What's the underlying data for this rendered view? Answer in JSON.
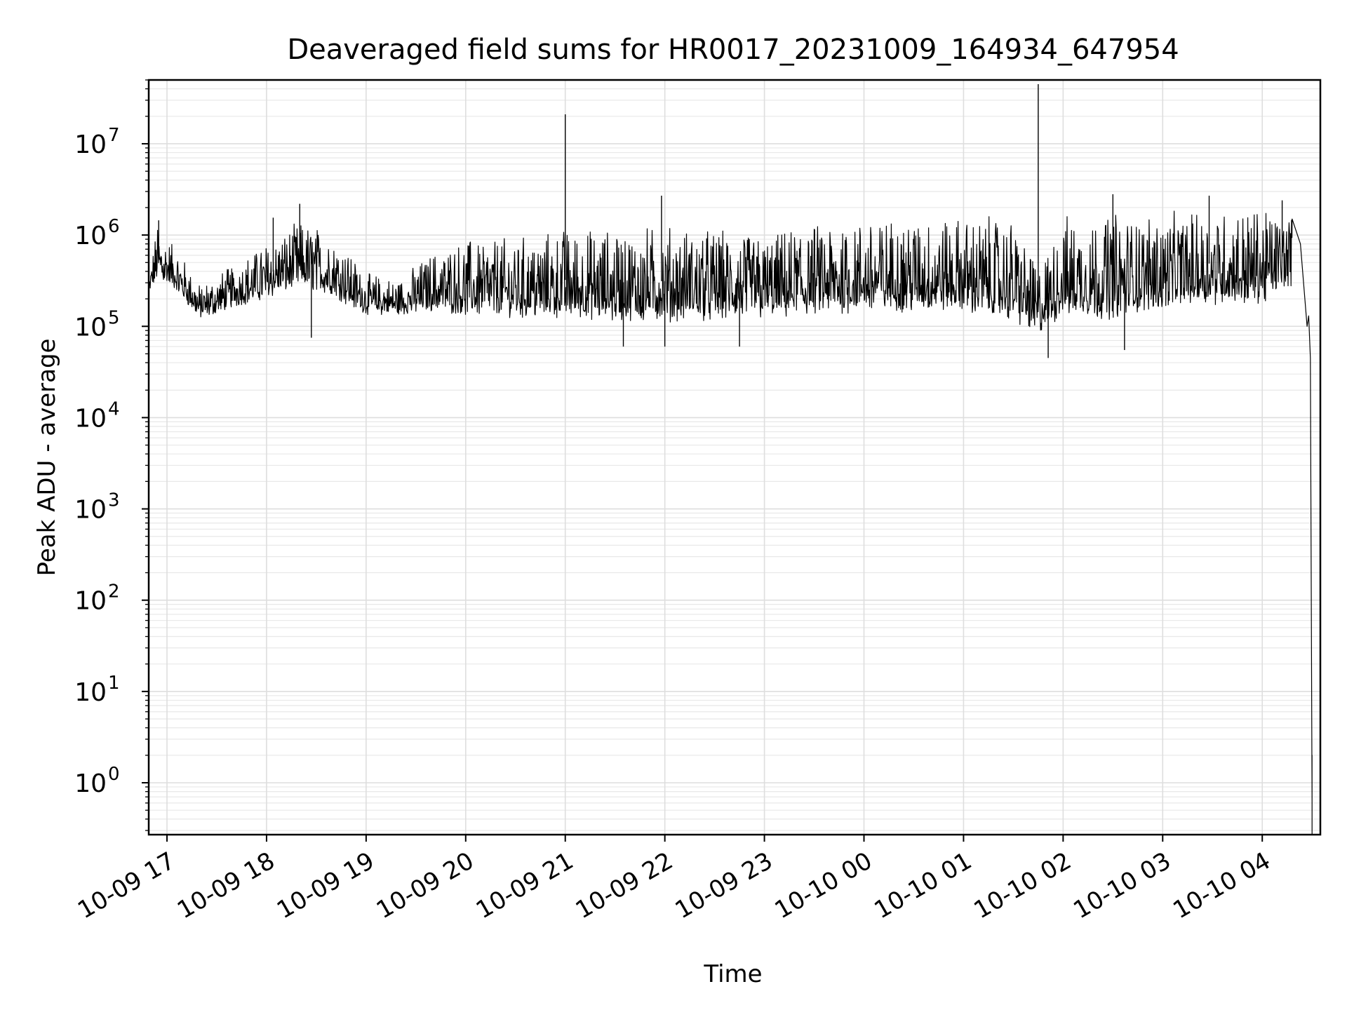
{
  "chart_data": {
    "type": "line",
    "title": "Deaveraged field sums for HR0017_20231009_164934_647954",
    "xlabel": "Time",
    "ylabel": "Peak ADU - average",
    "yscale": "log",
    "ylim": [
      0.27,
      50000000
    ],
    "xlim": [
      "2023-10-09 16:49",
      "2023-10-10 04:35"
    ],
    "grid": true,
    "x_ticks": [
      {
        "t": "2023-10-09 17:00",
        "label": "10-09 17"
      },
      {
        "t": "2023-10-09 18:00",
        "label": "10-09 18"
      },
      {
        "t": "2023-10-09 19:00",
        "label": "10-09 19"
      },
      {
        "t": "2023-10-09 20:00",
        "label": "10-09 20"
      },
      {
        "t": "2023-10-09 21:00",
        "label": "10-09 21"
      },
      {
        "t": "2023-10-09 22:00",
        "label": "10-09 22"
      },
      {
        "t": "2023-10-09 23:00",
        "label": "10-09 23"
      },
      {
        "t": "2023-10-10 00:00",
        "label": "10-10 00"
      },
      {
        "t": "2023-10-10 01:00",
        "label": "10-10 01"
      },
      {
        "t": "2023-10-10 02:00",
        "label": "10-10 02"
      },
      {
        "t": "2023-10-10 03:00",
        "label": "10-10 03"
      },
      {
        "t": "2023-10-10 04:00",
        "label": "10-10 04"
      }
    ],
    "y_ticks": [
      {
        "value": 1,
        "base": "10",
        "exp": "0"
      },
      {
        "value": 10,
        "base": "10",
        "exp": "1"
      },
      {
        "value": 100,
        "base": "10",
        "exp": "2"
      },
      {
        "value": 1000,
        "base": "10",
        "exp": "3"
      },
      {
        "value": 10000,
        "base": "10",
        "exp": "4"
      },
      {
        "value": 100000,
        "base": "10",
        "exp": "5"
      },
      {
        "value": 1000000,
        "base": "10",
        "exp": "6"
      },
      {
        "value": 10000000,
        "base": "10",
        "exp": "7"
      }
    ],
    "series": [
      {
        "color": "#000000",
        "envelope": [
          {
            "t": "2023-10-09 16:49",
            "low": 200000,
            "high": 350000
          },
          {
            "t": "2023-10-09 16:54",
            "low": 250000,
            "high": 1400000
          },
          {
            "t": "2023-10-09 17:05",
            "low": 200000,
            "high": 800000
          },
          {
            "t": "2023-10-09 17:20",
            "low": 100000,
            "high": 300000
          },
          {
            "t": "2023-10-09 17:40",
            "low": 130000,
            "high": 500000
          },
          {
            "t": "2023-10-09 18:00",
            "low": 150000,
            "high": 900000
          },
          {
            "t": "2023-10-09 18:20",
            "low": 200000,
            "high": 1500000
          },
          {
            "t": "2023-10-09 18:40",
            "low": 150000,
            "high": 1200000
          },
          {
            "t": "2023-10-09 19:00",
            "low": 110000,
            "high": 400000
          },
          {
            "t": "2023-10-09 19:20",
            "low": 110000,
            "high": 350000
          },
          {
            "t": "2023-10-09 19:40",
            "low": 110000,
            "high": 700000
          },
          {
            "t": "2023-10-09 20:00",
            "low": 90000,
            "high": 1000000
          },
          {
            "t": "2023-10-09 20:30",
            "low": 85000,
            "high": 1000000
          },
          {
            "t": "2023-10-09 21:00",
            "low": 80000,
            "high": 1300000
          },
          {
            "t": "2023-10-09 21:30",
            "low": 70000,
            "high": 1300000
          },
          {
            "t": "2023-10-09 22:00",
            "low": 70000,
            "high": 1400000
          },
          {
            "t": "2023-10-09 22:30",
            "low": 75000,
            "high": 1300000
          },
          {
            "t": "2023-10-09 23:00",
            "low": 80000,
            "high": 1100000
          },
          {
            "t": "2023-10-09 23:30",
            "low": 80000,
            "high": 1500000
          },
          {
            "t": "2023-10-10 00:00",
            "low": 90000,
            "high": 1700000
          },
          {
            "t": "2023-10-10 00:30",
            "low": 90000,
            "high": 1800000
          },
          {
            "t": "2023-10-10 01:00",
            "low": 90000,
            "high": 1800000
          },
          {
            "t": "2023-10-10 01:30",
            "low": 70000,
            "high": 1700000
          },
          {
            "t": "2023-10-10 01:45",
            "low": 55000,
            "high": 500000
          },
          {
            "t": "2023-10-10 02:00",
            "low": 80000,
            "high": 1800000
          },
          {
            "t": "2023-10-10 02:30",
            "low": 70000,
            "high": 2000000
          },
          {
            "t": "2023-10-10 03:00",
            "low": 100000,
            "high": 1800000
          },
          {
            "t": "2023-10-10 03:30",
            "low": 110000,
            "high": 2200000
          },
          {
            "t": "2023-10-10 04:00",
            "low": 110000,
            "high": 2200000
          },
          {
            "t": "2023-10-10 04:18",
            "low": 200000,
            "high": 2000000
          }
        ],
        "spikes": [
          {
            "t": "2023-10-09 16:55",
            "value": 1450000
          },
          {
            "t": "2023-10-09 18:04",
            "value": 1550000
          },
          {
            "t": "2023-10-09 18:20",
            "value": 2200000
          },
          {
            "t": "2023-10-09 21:00",
            "value": 21000000
          },
          {
            "t": "2023-10-09 21:58",
            "value": 2700000
          },
          {
            "t": "2023-10-10 01:45",
            "value": 45000000
          },
          {
            "t": "2023-10-10 02:30",
            "value": 2800000
          },
          {
            "t": "2023-10-10 03:28",
            "value": 2700000
          },
          {
            "t": "2023-10-10 04:12",
            "value": 2400000
          }
        ],
        "dips": [
          {
            "t": "2023-10-09 18:27",
            "value": 75000
          },
          {
            "t": "2023-10-09 21:35",
            "value": 60000
          },
          {
            "t": "2023-10-09 22:00",
            "value": 60000
          },
          {
            "t": "2023-10-09 22:45",
            "value": 60000
          },
          {
            "t": "2023-10-10 01:51",
            "value": 45000
          },
          {
            "t": "2023-10-10 02:37",
            "value": 55000
          }
        ],
        "tail": [
          {
            "t": "2023-10-10 04:18",
            "value": 1500000
          },
          {
            "t": "2023-10-10 04:23",
            "value": 800000
          },
          {
            "t": "2023-10-10 04:27",
            "value": 100000
          },
          {
            "t": "2023-10-10 04:28",
            "value": 130000
          },
          {
            "t": "2023-10-10 04:29",
            "value": 45000
          },
          {
            "t": "2023-10-10 04:30",
            "value": 0.6
          },
          {
            "t": "2023-10-10 04:30",
            "value": 2
          },
          {
            "t": "2023-10-10 04:30",
            "value": 0.27
          }
        ]
      }
    ]
  }
}
